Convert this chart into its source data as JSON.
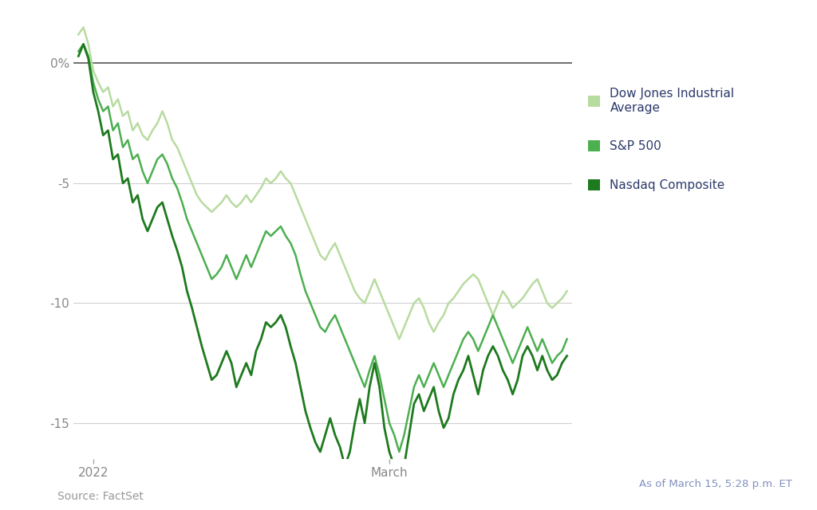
{
  "background_color": "#ffffff",
  "source_text": "Source: FactSet",
  "annotation_text": "As of March 15, 5:28 p.m. ET",
  "ylim": [
    -16.5,
    2.0
  ],
  "yticks": [
    0,
    -5,
    -10,
    -15
  ],
  "ytick_labels": [
    "0%",
    "-5",
    "-10",
    "-15"
  ],
  "x_label_2022": "2022",
  "x_label_march": "March",
  "colors": {
    "dow": "#b8dba0",
    "sp500": "#4caf50",
    "nasdaq": "#1e7a1e"
  },
  "legend_label_color": "#2d3a6b",
  "dow_jones": [
    1.2,
    1.5,
    0.8,
    -0.3,
    -0.8,
    -1.2,
    -1.0,
    -1.8,
    -1.5,
    -2.2,
    -2.0,
    -2.8,
    -2.5,
    -3.0,
    -3.2,
    -2.8,
    -2.5,
    -2.0,
    -2.5,
    -3.2,
    -3.5,
    -4.0,
    -4.5,
    -5.0,
    -5.5,
    -5.8,
    -6.0,
    -6.2,
    -6.0,
    -5.8,
    -5.5,
    -5.8,
    -6.0,
    -5.8,
    -5.5,
    -5.8,
    -5.5,
    -5.2,
    -4.8,
    -5.0,
    -4.8,
    -4.5,
    -4.8,
    -5.0,
    -5.5,
    -6.0,
    -6.5,
    -7.0,
    -7.5,
    -8.0,
    -8.2,
    -7.8,
    -7.5,
    -8.0,
    -8.5,
    -9.0,
    -9.5,
    -9.8,
    -10.0,
    -9.5,
    -9.0,
    -9.5,
    -10.0,
    -10.5,
    -11.0,
    -11.5,
    -11.0,
    -10.5,
    -10.0,
    -9.8,
    -10.2,
    -10.8,
    -11.2,
    -10.8,
    -10.5,
    -10.0,
    -9.8,
    -9.5,
    -9.2,
    -9.0,
    -8.8,
    -9.0,
    -9.5,
    -10.0,
    -10.5,
    -10.0,
    -9.5,
    -9.8,
    -10.2,
    -10.0,
    -9.8,
    -9.5,
    -9.2,
    -9.0,
    -9.5,
    -10.0,
    -10.2,
    -10.0,
    -9.8,
    -9.5
  ],
  "sp500": [
    0.5,
    0.8,
    0.3,
    -0.8,
    -1.5,
    -2.0,
    -1.8,
    -2.8,
    -2.5,
    -3.5,
    -3.2,
    -4.0,
    -3.8,
    -4.5,
    -5.0,
    -4.5,
    -4.0,
    -3.8,
    -4.2,
    -4.8,
    -5.2,
    -5.8,
    -6.5,
    -7.0,
    -7.5,
    -8.0,
    -8.5,
    -9.0,
    -8.8,
    -8.5,
    -8.0,
    -8.5,
    -9.0,
    -8.5,
    -8.0,
    -8.5,
    -8.0,
    -7.5,
    -7.0,
    -7.2,
    -7.0,
    -6.8,
    -7.2,
    -7.5,
    -8.0,
    -8.8,
    -9.5,
    -10.0,
    -10.5,
    -11.0,
    -11.2,
    -10.8,
    -10.5,
    -11.0,
    -11.5,
    -12.0,
    -12.5,
    -13.0,
    -13.5,
    -12.8,
    -12.2,
    -13.0,
    -14.0,
    -15.0,
    -15.5,
    -16.2,
    -15.5,
    -14.5,
    -13.5,
    -13.0,
    -13.5,
    -13.0,
    -12.5,
    -13.0,
    -13.5,
    -13.0,
    -12.5,
    -12.0,
    -11.5,
    -11.2,
    -11.5,
    -12.0,
    -11.5,
    -11.0,
    -10.5,
    -11.0,
    -11.5,
    -12.0,
    -12.5,
    -12.0,
    -11.5,
    -11.0,
    -11.5,
    -12.0,
    -11.5,
    -12.0,
    -12.5,
    -12.2,
    -12.0,
    -11.5
  ],
  "nasdaq": [
    0.3,
    0.8,
    0.2,
    -1.2,
    -2.0,
    -3.0,
    -2.8,
    -4.0,
    -3.8,
    -5.0,
    -4.8,
    -5.8,
    -5.5,
    -6.5,
    -7.0,
    -6.5,
    -6.0,
    -5.8,
    -6.5,
    -7.2,
    -7.8,
    -8.5,
    -9.5,
    -10.2,
    -11.0,
    -11.8,
    -12.5,
    -13.2,
    -13.0,
    -12.5,
    -12.0,
    -12.5,
    -13.5,
    -13.0,
    -12.5,
    -13.0,
    -12.0,
    -11.5,
    -10.8,
    -11.0,
    -10.8,
    -10.5,
    -11.0,
    -11.8,
    -12.5,
    -13.5,
    -14.5,
    -15.2,
    -15.8,
    -16.2,
    -15.5,
    -14.8,
    -15.5,
    -16.0,
    -16.8,
    -16.2,
    -15.0,
    -14.0,
    -15.0,
    -13.5,
    -12.5,
    -13.5,
    -15.2,
    -16.2,
    -16.8,
    -17.5,
    -16.8,
    -15.5,
    -14.2,
    -13.8,
    -14.5,
    -14.0,
    -13.5,
    -14.5,
    -15.2,
    -14.8,
    -13.8,
    -13.2,
    -12.8,
    -12.2,
    -13.0,
    -13.8,
    -12.8,
    -12.2,
    -11.8,
    -12.2,
    -12.8,
    -13.2,
    -13.8,
    -13.2,
    -12.2,
    -11.8,
    -12.2,
    -12.8,
    -12.2,
    -12.8,
    -13.2,
    -13.0,
    -12.5,
    -12.2
  ]
}
